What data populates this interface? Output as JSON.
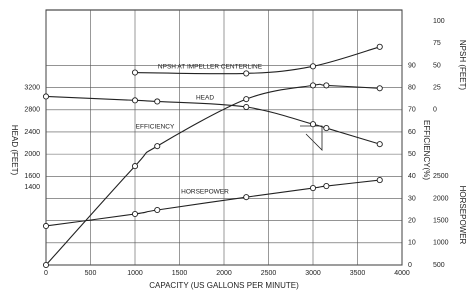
{
  "chart_data": {
    "type": "line",
    "xlabel": "CAPACITY (US GALLONS PER MINUTE)",
    "xlim": [
      0,
      4000
    ],
    "xticks": [
      0,
      500,
      1000,
      1500,
      2000,
      2500,
      3000,
      3500,
      4000
    ],
    "grid": true,
    "color": "#222222",
    "axes": [
      {
        "title": "HEAD (FEET)",
        "side": "left",
        "lim": [
          0,
          4600
        ],
        "ticks": [
          1400,
          1600,
          2000,
          2400,
          2800,
          3200
        ]
      },
      {
        "title": "EFFICIENCY(%)",
        "side": "right",
        "lim": [
          0,
          115
        ],
        "ticks": [
          0,
          10,
          20,
          30,
          40,
          50,
          60,
          70,
          80,
          90
        ]
      },
      {
        "title": "NPSH (FEET)",
        "side": "far-right",
        "lim": [
          -175,
          112.5
        ],
        "ticks": [
          0,
          25,
          50,
          75,
          100
        ]
      },
      {
        "title": "HORSEPOWER",
        "side": "far-right",
        "lim": [
          500,
          6250
        ],
        "ticks": [
          500,
          1000,
          1500,
          2000,
          2500
        ]
      }
    ],
    "series": [
      {
        "name": "HEAD",
        "axis": 0,
        "x": [
          0,
          1000,
          1250,
          2250,
          3000,
          3150,
          3750
        ],
        "values": [
          3040,
          2970,
          2950,
          2850,
          2540,
          2470,
          2180
        ]
      },
      {
        "name": "EFFICIENCY",
        "axis": 1,
        "x": [
          0,
          1000,
          1250,
          2250,
          3000,
          3150,
          3750
        ],
        "values": [
          0,
          44.6,
          53.6,
          74.8,
          81,
          81,
          79.7
        ]
      },
      {
        "name": "NPSH AT IMPELLER CENTERLINE",
        "axis": 2,
        "x": [
          1000,
          2250,
          3000,
          3750
        ],
        "values": [
          42,
          41,
          49,
          71
        ]
      },
      {
        "name": "HORSEPOWER",
        "axis": 3,
        "x": [
          0,
          1000,
          1250,
          2250,
          3000,
          3150,
          3750
        ],
        "values": [
          1380,
          1650,
          1740,
          2030,
          2235,
          2280,
          2415
        ]
      }
    ]
  }
}
